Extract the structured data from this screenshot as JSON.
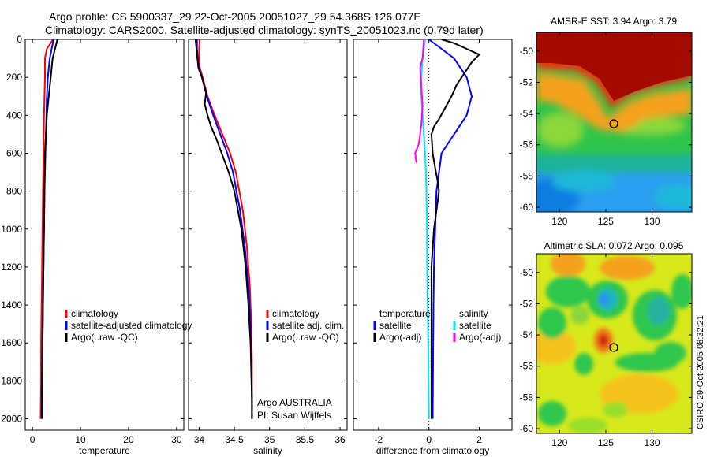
{
  "title": {
    "line1": "Argo profile: CS 5900337_29 22-Oct-2005 20051027_29 54.368S 126.077E",
    "line2": "Climatology: CARS2000. Satellite-adjusted climatology: synTS_20051023.nc (0.79d later)"
  },
  "side_label": "CSIRO 29-Oct-2005 08:32:21",
  "colors": {
    "climatology": "#ff0000",
    "satellite": "#0000ff",
    "argo": "#000000",
    "salinity_satellite": "#00e5ff",
    "salinity_argo": "#ff00ff",
    "marker": "#000000"
  },
  "chart_data": [
    {
      "id": "temperature",
      "type": "line",
      "xlabel": "temperature",
      "ylabel": "",
      "xlim": [
        -1.5,
        31.5
      ],
      "ylim": [
        0,
        2060
      ],
      "y_reversed": true,
      "xticks": [
        0,
        10,
        20,
        30
      ],
      "xticklabels": [
        "0",
        "10",
        "20",
        "30"
      ],
      "yticks": [
        0,
        200,
        400,
        600,
        800,
        1000,
        1200,
        1400,
        1600,
        1800,
        2000
      ],
      "yticklabels": [
        "0",
        "200",
        "400",
        "600",
        "800",
        "1000",
        "1200",
        "1400",
        "1600",
        "1800",
        "2000"
      ],
      "legend": {
        "position": "lower-right",
        "entries": [
          "climatology",
          "satellite-adjusted climatology",
          "Argo(..raw -QC)"
        ]
      },
      "series": [
        {
          "name": "climatology",
          "color": "#ff0000",
          "x": [
            4.3,
            3.0,
            2.6,
            2.6,
            2.5,
            2.4,
            2.3,
            2.2,
            2.1,
            2.0,
            1.9,
            1.8,
            1.8,
            1.7
          ],
          "y": [
            0,
            50,
            100,
            200,
            300,
            400,
            600,
            800,
            1000,
            1200,
            1400,
            1600,
            1800,
            2000
          ]
        },
        {
          "name": "satellite-adjusted climatology",
          "color": "#0000ff",
          "x": [
            4.4,
            4.0,
            3.6,
            3.2,
            3.0,
            2.9,
            2.7,
            2.5,
            2.4,
            2.3,
            2.2,
            2.1,
            2.0,
            1.9
          ],
          "y": [
            0,
            50,
            100,
            200,
            300,
            400,
            600,
            800,
            1000,
            1200,
            1400,
            1600,
            1800,
            2000
          ]
        },
        {
          "name": "Argo(..raw -QC)",
          "color": "#000000",
          "x": [
            5.2,
            4.7,
            4.2,
            3.8,
            3.4,
            3.0,
            2.8,
            2.6,
            2.5,
            2.4,
            2.3,
            2.2,
            2.1,
            2.0,
            2.0
          ],
          "y": [
            0,
            50,
            100,
            200,
            300,
            400,
            500,
            600,
            800,
            1000,
            1200,
            1400,
            1600,
            1800,
            2000
          ]
        }
      ]
    },
    {
      "id": "salinity",
      "type": "line",
      "xlabel": "salinity",
      "ylabel": "",
      "xlim": [
        33.85,
        36.1
      ],
      "ylim": [
        0,
        2060
      ],
      "y_reversed": true,
      "xticks": [
        34,
        34.5,
        35,
        35.5,
        36
      ],
      "xticklabels": [
        "34",
        "34.5",
        "35",
        "35.5",
        "36"
      ],
      "yticks": [
        0,
        200,
        400,
        600,
        800,
        1000,
        1200,
        1400,
        1600,
        1800,
        2000
      ],
      "legend": {
        "position": "lower-right",
        "entries": [
          "climatology",
          "satellite adj. clim.",
          "Argo(..raw -QC)"
        ]
      },
      "annotations": [
        "Argo AUSTRALIA",
        "PI: Susan Wijffels"
      ],
      "series": [
        {
          "name": "climatology",
          "color": "#ff0000",
          "x": [
            34.01,
            34.0,
            34.0,
            34.01,
            34.05,
            34.12,
            34.22,
            34.33,
            34.44,
            34.52,
            34.62,
            34.68,
            34.72,
            34.74,
            34.75,
            34.75,
            34.75
          ],
          "y": [
            0,
            50,
            100,
            150,
            200,
            300,
            400,
            500,
            600,
            700,
            900,
            1100,
            1300,
            1500,
            1700,
            1900,
            2000
          ]
        },
        {
          "name": "satellite adj. clim.",
          "color": "#0000ff",
          "x": [
            33.97,
            33.97,
            33.98,
            34.0,
            34.04,
            34.11,
            34.2,
            34.3,
            34.4,
            34.48,
            34.58,
            34.65,
            34.7,
            34.73,
            34.74,
            34.75,
            34.75
          ],
          "y": [
            0,
            50,
            100,
            150,
            200,
            300,
            400,
            500,
            600,
            700,
            900,
            1100,
            1300,
            1500,
            1700,
            1900,
            2000
          ]
        },
        {
          "name": "Argo(..raw -QC)",
          "color": "#000000",
          "x": [
            33.95,
            33.96,
            33.97,
            33.99,
            34.04,
            34.1,
            34.08,
            34.12,
            34.17,
            34.24,
            34.3,
            34.36,
            34.42,
            34.5,
            34.6,
            34.66,
            34.7,
            34.73,
            34.74,
            34.75,
            34.75
          ],
          "y": [
            0,
            40,
            80,
            150,
            200,
            280,
            340,
            400,
            460,
            520,
            580,
            640,
            700,
            800,
            1000,
            1200,
            1400,
            1600,
            1750,
            1900,
            2000
          ]
        }
      ]
    },
    {
      "id": "difference",
      "type": "line",
      "xlabel": "difference from climatology",
      "ylabel": "",
      "xlim": [
        -3.0,
        3.3
      ],
      "ylim": [
        0,
        2060
      ],
      "y_reversed": true,
      "xticks": [
        -2,
        0,
        2
      ],
      "xticklabels": [
        "-2",
        "0",
        "2"
      ],
      "yticks": [
        0,
        200,
        400,
        600,
        800,
        1000,
        1200,
        1400,
        1600,
        1800,
        2000
      ],
      "zero_line": true,
      "legend": {
        "position": "lower-center",
        "headers": [
          "temperature",
          "salinity"
        ],
        "entries": [
          "satellite",
          "Argo(-adj)",
          "satellite",
          "Argo(-adj)"
        ]
      },
      "series": [
        {
          "name": "temperature satellite",
          "color": "#0000ff",
          "x": [
            0.0,
            0.5,
            1.0,
            1.5,
            1.7,
            1.5,
            1.0,
            0.5,
            0.4,
            0.3,
            0.25,
            0.2,
            0.18,
            0.17,
            0.16,
            0.15
          ],
          "y": [
            0,
            50,
            100,
            200,
            300,
            400,
            500,
            600,
            700,
            800,
            1000,
            1200,
            1400,
            1600,
            1800,
            2000
          ]
        },
        {
          "name": "temperature Argo(-adj)",
          "color": "#000000",
          "x": [
            0.5,
            1.0,
            1.5,
            2.0,
            1.7,
            1.4,
            1.1,
            0.9,
            0.4,
            0.2,
            0.1,
            0.15,
            0.25,
            0.35,
            0.4,
            0.3,
            0.2,
            0.1,
            0.1,
            0.1,
            0.1,
            0.1,
            0.1
          ],
          "y": [
            0,
            20,
            50,
            80,
            120,
            180,
            240,
            300,
            420,
            460,
            500,
            600,
            680,
            750,
            800,
            900,
            1000,
            1200,
            1400,
            1600,
            1800,
            1900,
            2000
          ]
        },
        {
          "name": "salinity satellite",
          "color": "#00e5ff",
          "x": [
            -0.15,
            -0.2,
            -0.25,
            -0.3,
            -0.3,
            -0.25,
            -0.2,
            -0.15,
            -0.12,
            -0.1,
            -0.08,
            -0.07,
            -0.05,
            -0.03,
            0.0
          ],
          "y": [
            0,
            50,
            100,
            200,
            300,
            400,
            500,
            600,
            700,
            800,
            1000,
            1200,
            1400,
            1600,
            2000
          ]
        },
        {
          "name": "salinity Argo(-adj)",
          "color": "#ff00ff",
          "x": [
            -0.2,
            -0.25,
            -0.35,
            -0.3,
            -0.25,
            -0.3,
            -0.4,
            -0.55,
            -0.5
          ],
          "y": [
            0,
            100,
            150,
            250,
            350,
            450,
            550,
            600,
            650
          ]
        }
      ]
    },
    {
      "id": "sst-map",
      "type": "heatmap",
      "title": "AMSR-E SST: 3.94 Argo: 3.79",
      "xlim": [
        117.5,
        134.3
      ],
      "ylim": [
        -60.3,
        -48.8
      ],
      "xticks": [
        120,
        125,
        130
      ],
      "xticklabels": [
        "120",
        "125",
        "130"
      ],
      "yticks": [
        -50,
        -52,
        -54,
        -56,
        -58,
        -60
      ],
      "yticklabels": [
        "-50",
        "-52",
        "-54",
        "-56",
        "-58",
        "-60"
      ],
      "marker": {
        "lon": 126.077,
        "lat": -54.368
      }
    },
    {
      "id": "sla-map",
      "type": "heatmap",
      "title": "Altimetric SLA: 0.072 Argo: 0.095",
      "xlim": [
        117.5,
        134.3
      ],
      "ylim": [
        -60.3,
        -48.8
      ],
      "xticks": [
        120,
        125,
        130
      ],
      "xticklabels": [
        "120",
        "125",
        "130"
      ],
      "yticks": [
        -50,
        -52,
        -54,
        -56,
        -58,
        -60
      ],
      "yticklabels": [
        "-50",
        "-52",
        "-54",
        "-56",
        "-58",
        "-60"
      ],
      "marker": {
        "lon": 126.077,
        "lat": -54.368
      }
    }
  ]
}
